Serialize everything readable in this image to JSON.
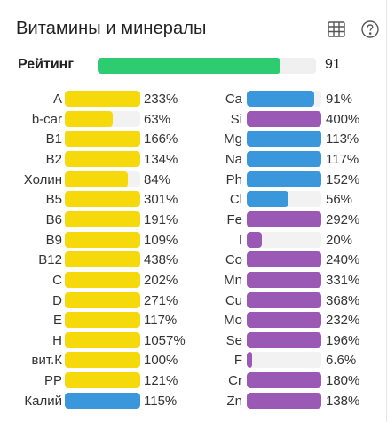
{
  "header": {
    "title": "Витамины и минералы",
    "table_icon": "table-icon",
    "help_icon": "help-icon"
  },
  "rating": {
    "label": "Рейтинг",
    "value": "91",
    "fraction": 0.91,
    "color": "#2ecc71"
  },
  "colors": {
    "vitamin": "#f5d90a",
    "mineral_blue": "#3a97dc",
    "mineral_purple": "#9b59b6",
    "track": "#f2f2f2"
  },
  "vitamins": [
    {
      "label": "A",
      "percent": "233%",
      "value": 233,
      "color": "#f5d90a"
    },
    {
      "label": "b-car",
      "percent": "63%",
      "value": 63,
      "color": "#f5d90a"
    },
    {
      "label": "B1",
      "percent": "166%",
      "value": 166,
      "color": "#f5d90a"
    },
    {
      "label": "B2",
      "percent": "134%",
      "value": 134,
      "color": "#f5d90a"
    },
    {
      "label": "Холин",
      "percent": "84%",
      "value": 84,
      "color": "#f5d90a"
    },
    {
      "label": "B5",
      "percent": "301%",
      "value": 301,
      "color": "#f5d90a"
    },
    {
      "label": "B6",
      "percent": "191%",
      "value": 191,
      "color": "#f5d90a"
    },
    {
      "label": "B9",
      "percent": "109%",
      "value": 109,
      "color": "#f5d90a"
    },
    {
      "label": "B12",
      "percent": "438%",
      "value": 438,
      "color": "#f5d90a"
    },
    {
      "label": "C",
      "percent": "202%",
      "value": 202,
      "color": "#f5d90a"
    },
    {
      "label": "D",
      "percent": "271%",
      "value": 271,
      "color": "#f5d90a"
    },
    {
      "label": "E",
      "percent": "117%",
      "value": 117,
      "color": "#f5d90a"
    },
    {
      "label": "H",
      "percent": "1057%",
      "value": 1057,
      "color": "#f5d90a"
    },
    {
      "label": "вит.К",
      "percent": "100%",
      "value": 100,
      "color": "#f5d90a"
    },
    {
      "label": "PP",
      "percent": "121%",
      "value": 121,
      "color": "#f5d90a"
    },
    {
      "label": "Калий",
      "percent": "115%",
      "value": 115,
      "color": "#3a97dc"
    }
  ],
  "minerals": [
    {
      "label": "Ca",
      "percent": "91%",
      "value": 91,
      "color": "#3a97dc"
    },
    {
      "label": "Si",
      "percent": "400%",
      "value": 400,
      "color": "#9b59b6"
    },
    {
      "label": "Mg",
      "percent": "113%",
      "value": 113,
      "color": "#3a97dc"
    },
    {
      "label": "Na",
      "percent": "117%",
      "value": 117,
      "color": "#3a97dc"
    },
    {
      "label": "Ph",
      "percent": "152%",
      "value": 152,
      "color": "#3a97dc"
    },
    {
      "label": "Cl",
      "percent": "56%",
      "value": 56,
      "color": "#3a97dc"
    },
    {
      "label": "Fe",
      "percent": "292%",
      "value": 292,
      "color": "#9b59b6"
    },
    {
      "label": "I",
      "percent": "20%",
      "value": 20,
      "color": "#9b59b6"
    },
    {
      "label": "Co",
      "percent": "240%",
      "value": 240,
      "color": "#9b59b6"
    },
    {
      "label": "Mn",
      "percent": "331%",
      "value": 331,
      "color": "#9b59b6"
    },
    {
      "label": "Cu",
      "percent": "368%",
      "value": 368,
      "color": "#9b59b6"
    },
    {
      "label": "Mo",
      "percent": "232%",
      "value": 232,
      "color": "#9b59b6"
    },
    {
      "label": "Se",
      "percent": "196%",
      "value": 196,
      "color": "#9b59b6"
    },
    {
      "label": "F",
      "percent": "6.6%",
      "value": 6.6,
      "color": "#9b59b6"
    },
    {
      "label": "Cr",
      "percent": "180%",
      "value": 180,
      "color": "#9b59b6"
    },
    {
      "label": "Zn",
      "percent": "138%",
      "value": 138,
      "color": "#9b59b6"
    }
  ]
}
